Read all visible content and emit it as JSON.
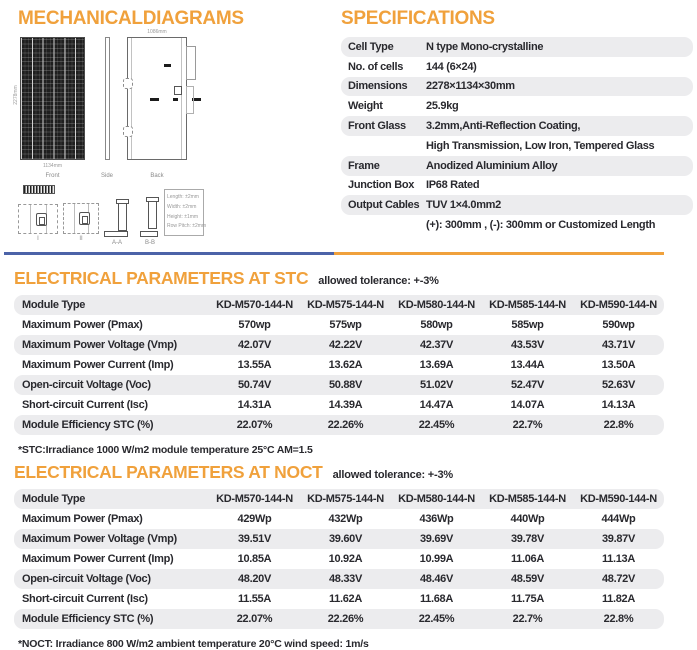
{
  "colors": {
    "accent_orange": "#F0A13C",
    "accent_blue": "#4C63A8",
    "row_shade": "#ECECEE",
    "text_dark": "#29292e"
  },
  "mechanical": {
    "title": "MECHANICALDIAGRAMS",
    "views": {
      "front": "Front",
      "side": "Side",
      "back": "Back"
    },
    "dimensions": {
      "height": "2278mm",
      "width": "1134mm",
      "back_width": "1086mm"
    },
    "details": {
      "view1": "I",
      "view2": "II",
      "section_a": "A-A",
      "section_b": "B-B"
    },
    "tolerances": [
      "Length: ±2mm",
      "Width: ±2mm",
      "Height: ±1mm",
      "Row Pitch: ±2mm"
    ]
  },
  "specifications": {
    "title": "SPECIFICATIONS",
    "rows": [
      {
        "label": "Cell Type",
        "value": "N type Mono-crystalline"
      },
      {
        "label": "No. of cells",
        "value": "144 (6×24)"
      },
      {
        "label": "Dimensions",
        "value": "2278×1134×30mm"
      },
      {
        "label": "Weight",
        "value": "25.9kg"
      },
      {
        "label": "Front Glass",
        "value": "3.2mm,Anti-Reflection Coating,"
      },
      {
        "label": "",
        "value": "High Transmission, Low Iron, Tempered Glass"
      },
      {
        "label": "Frame",
        "value": "Anodized Aluminium Alloy"
      },
      {
        "label": "Junction Box",
        "value": "IP68 Rated"
      },
      {
        "label": "Output Cables",
        "value": "TUV 1×4.0mm2"
      },
      {
        "label": "",
        "value": "(+): 300mm , (-): 300mm or Customized Length"
      }
    ]
  },
  "stc": {
    "title": "ELECTRICAL PARAMETERS AT STC",
    "tolerance_note": "allowed tolerance: +-3%",
    "header": [
      "Module Type",
      "KD-M570-144-N",
      "KD-M575-144-N",
      "KD-M580-144-N",
      "KD-M585-144-N",
      "KD-M590-144-N"
    ],
    "rows": [
      {
        "label": "Maximum Power (Pmax)",
        "values": [
          "570wp",
          "575wp",
          "580wp",
          "585wp",
          "590wp"
        ]
      },
      {
        "label": "Maximum Power Voltage (Vmp)",
        "values": [
          "42.07V",
          "42.22V",
          "42.37V",
          "43.53V",
          "43.71V"
        ]
      },
      {
        "label": "Maximum Power Current (Imp)",
        "values": [
          "13.55A",
          "13.62A",
          "13.69A",
          "13.44A",
          "13.50A"
        ]
      },
      {
        "label": "Open-circuit Voltage (Voc)",
        "values": [
          "50.74V",
          "50.88V",
          "51.02V",
          "52.47V",
          "52.63V"
        ]
      },
      {
        "label": "Short-circuit Current (Isc)",
        "values": [
          "14.31A",
          "14.39A",
          "14.47A",
          "14.07A",
          "14.13A"
        ]
      },
      {
        "label": "Module Efficiency STC (%)",
        "values": [
          "22.07%",
          "22.26%",
          "22.45%",
          "22.7%",
          "22.8%"
        ]
      }
    ],
    "footnote": "*STC:Irradiance 1000 W/m2 module temperature 25°C AM=1.5"
  },
  "noct": {
    "title": "ELECTRICAL PARAMETERS AT NOCT",
    "tolerance_note": "allowed tolerance: +-3%",
    "header": [
      "Module Type",
      "KD-M570-144-N",
      "KD-M575-144-N",
      "KD-M580-144-N",
      "KD-M585-144-N",
      "KD-M590-144-N"
    ],
    "rows": [
      {
        "label": "Maximum Power (Pmax)",
        "values": [
          "429Wp",
          "432Wp",
          "436Wp",
          "440Wp",
          "444Wp"
        ]
      },
      {
        "label": "Maximum Power Voltage (Vmp)",
        "values": [
          "39.51V",
          "39.60V",
          "39.69V",
          "39.78V",
          "39.87V"
        ]
      },
      {
        "label": "Maximum Power Current (Imp)",
        "values": [
          "10.85A",
          "10.92A",
          "10.99A",
          "11.06A",
          "11.13A"
        ]
      },
      {
        "label": "Open-circuit Voltage (Voc)",
        "values": [
          "48.20V",
          "48.33V",
          "48.46V",
          "48.59V",
          "48.72V"
        ]
      },
      {
        "label": "Short-circuit Current (Isc)",
        "values": [
          "11.55A",
          "11.62A",
          "11.68A",
          "11.75A",
          "11.82A"
        ]
      },
      {
        "label": "Module Efficiency STC (%)",
        "values": [
          "22.07%",
          "22.26%",
          "22.45%",
          "22.7%",
          "22.8%"
        ]
      }
    ],
    "footnote": "*NOCT: Irradiance 800 W/m2 ambient temperature 20°C wind speed: 1m/s"
  }
}
